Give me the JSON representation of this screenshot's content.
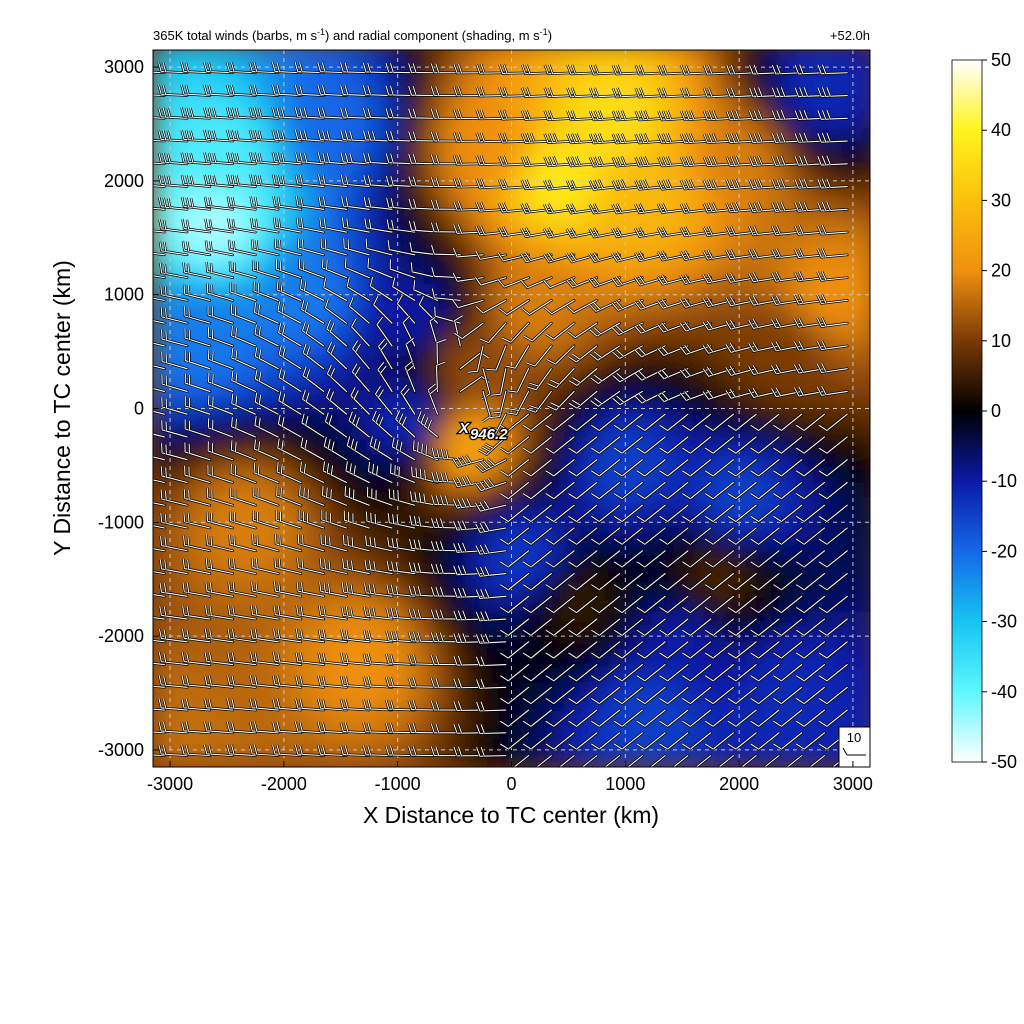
{
  "title": {
    "main": "365K total winds (barbs, m s",
    "unit1_sup": "-1",
    "middle": ") and radial component (shading, m s",
    "unit2_sup": "-1",
    "end": ")",
    "time": "+52.0h"
  },
  "center_marker": {
    "symbol": "X",
    "label": "946.2"
  },
  "reference_barb": {
    "label": "10"
  },
  "colorbar": {
    "ticks": [
      "50",
      "40",
      "30",
      "20",
      "10",
      "0",
      "-10",
      "-20",
      "-30",
      "-40",
      "-50"
    ],
    "colors": {
      "neg50": "#ffffff",
      "neg40": "#5ef7ff",
      "neg30": "#16c4f2",
      "neg20": "#1468e8",
      "neg10": "#0a1aa8",
      "zero": "#000000",
      "pos10": "#7a3a06",
      "pos20": "#f09010",
      "pos30": "#fbc10a",
      "pos40": "#fff41e",
      "pos50": "#ffffff"
    }
  },
  "chart_data": {
    "type": "heatmap",
    "title": "365K total winds (barbs, m s-1) and radial component (shading, m s-1)",
    "annotation_time": "+52.0h",
    "xlabel": "X Distance to TC center (km)",
    "ylabel": "Y Distance to TC center (km)",
    "xlim": [
      -3150,
      3150
    ],
    "ylim": [
      -3150,
      3150
    ],
    "x_ticks": [
      "-3000",
      "-2000",
      "-1000",
      "0",
      "1000",
      "2000",
      "3000"
    ],
    "y_ticks": [
      "3000",
      "2000",
      "1000",
      "0",
      "-1000",
      "-2000",
      "-3000"
    ],
    "x_tick_values": [
      -3000,
      -2000,
      -1000,
      0,
      1000,
      2000,
      3000
    ],
    "y_tick_values": [
      3000,
      2000,
      1000,
      0,
      -1000,
      -2000,
      -3000
    ],
    "grid": true,
    "colorbar_range": [
      -50,
      50
    ],
    "center": {
      "x": -400,
      "y": -150,
      "min_pressure_label": "946.2"
    },
    "regions": [
      {
        "x": -2500,
        "y": 2200,
        "value": -38
      },
      {
        "x": -2600,
        "y": 1600,
        "value": -45
      },
      {
        "x": -1600,
        "y": 2500,
        "value": -20
      },
      {
        "x": -1800,
        "y": 1000,
        "value": -22
      },
      {
        "x": -2700,
        "y": 700,
        "value": -22
      },
      {
        "x": -850,
        "y": 800,
        "value": -10
      },
      {
        "x": -900,
        "y": -100,
        "value": -12
      },
      {
        "x": -200,
        "y": 2300,
        "value": 20
      },
      {
        "x": 400,
        "y": 2000,
        "value": 38
      },
      {
        "x": 900,
        "y": 2500,
        "value": 36
      },
      {
        "x": 1200,
        "y": 1900,
        "value": 28
      },
      {
        "x": 2000,
        "y": 2200,
        "value": 18
      },
      {
        "x": 2800,
        "y": 1000,
        "value": 20
      },
      {
        "x": 2400,
        "y": 500,
        "value": 10
      },
      {
        "x": 200,
        "y": 900,
        "value": 18
      },
      {
        "x": -400,
        "y": 400,
        "value": 12
      },
      {
        "x": 2700,
        "y": 2800,
        "value": -12
      },
      {
        "x": 1000,
        "y": -500,
        "value": -15
      },
      {
        "x": 2000,
        "y": -800,
        "value": -15
      },
      {
        "x": 100,
        "y": -1300,
        "value": -14
      },
      {
        "x": 1800,
        "y": -1500,
        "value": 6
      },
      {
        "x": 1500,
        "y": -2000,
        "value": -10
      },
      {
        "x": 1200,
        "y": -2700,
        "value": -15
      },
      {
        "x": 2400,
        "y": -2500,
        "value": -12
      },
      {
        "x": -2300,
        "y": -1000,
        "value": 18
      },
      {
        "x": -1300,
        "y": -2200,
        "value": 20
      },
      {
        "x": -400,
        "y": -300,
        "value": 24
      },
      {
        "x": -2900,
        "y": -2900,
        "value": 16
      },
      {
        "x": 600,
        "y": -1700,
        "value": 4
      }
    ],
    "barbs": {
      "x_start": -3050,
      "x_step": 200,
      "y_start": 2950,
      "y_step": -200,
      "speed_units": "m s-1",
      "note": "wind barbs on a regular grid; speeds estimated from barb feathers"
    }
  }
}
